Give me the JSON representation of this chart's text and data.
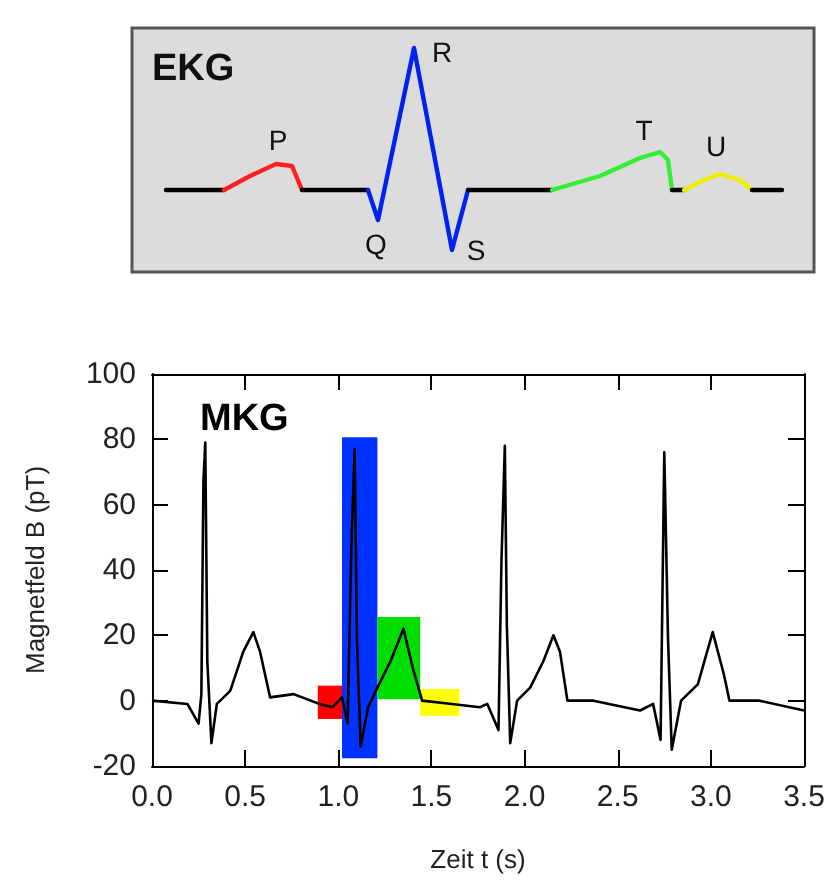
{
  "chart_data": [
    {
      "type": "other",
      "title": "EKG",
      "annotations": [
        "P",
        "Q",
        "R",
        "S",
        "T",
        "U"
      ]
    },
    {
      "type": "line",
      "xlabel": "Zeit t (s)",
      "ylabel": "Magnetfeld B (pT)",
      "xlim": [
        0,
        3.5
      ],
      "xticks": [
        {
          "value": 0,
          "label": "0.0"
        },
        {
          "value": 0.5,
          "label": "0.5"
        },
        {
          "value": 1,
          "label": "1.0"
        },
        {
          "value": 1.5,
          "label": "1.5"
        },
        {
          "value": 2,
          "label": "2.0"
        },
        {
          "value": 2.5,
          "label": "2.5"
        },
        {
          "value": 3,
          "label": "3.0"
        },
        {
          "value": 3.5,
          "label": "3.5"
        }
      ],
      "ylim": [
        -20,
        100
      ],
      "yticks": [
        -20,
        0,
        20,
        40,
        60,
        80,
        100
      ],
      "grid": false,
      "legend": "top left",
      "marker": "none",
      "line_style": "solid",
      "series": [
        {
          "name": "MKG",
          "color": "#000000",
          "x": [
            0,
            0.19,
            0.25,
            0.265,
            0.276,
            0.286,
            0.297,
            0.319,
            0.348,
            0.42,
            0.49,
            0.544,
            0.58,
            0.634,
            0.76,
            0.9,
            0.97,
            1.02,
            1.05,
            1.07,
            1.088,
            1.1,
            1.12,
            1.16,
            1.21,
            1.28,
            1.35,
            1.4,
            1.45,
            1.61,
            1.76,
            1.8,
            1.86,
            1.876,
            1.894,
            1.905,
            1.923,
            1.96,
            2.03,
            2.1,
            2.155,
            2.19,
            2.23,
            2.37,
            2.62,
            2.69,
            2.73,
            2.75,
            2.77,
            2.79,
            2.84,
            2.93,
            3.01,
            3.07,
            3.1,
            3.26,
            3.5
          ],
          "values": [
            0,
            -1,
            -7,
            2,
            67,
            79,
            12,
            -13,
            -1,
            3,
            15,
            21,
            15,
            1,
            2,
            -1,
            -2,
            1,
            -7,
            47,
            77,
            19,
            -14,
            -2,
            4,
            12,
            22,
            10,
            0,
            -1,
            -2,
            -1,
            -9,
            43,
            78,
            23,
            -13,
            0,
            4,
            12,
            20,
            15,
            0,
            0,
            -3,
            -1,
            -12,
            76,
            19,
            -15,
            0,
            5,
            21,
            8,
            0,
            0,
            -3
          ]
        }
      ],
      "bands": [
        {
          "axis": "x",
          "from": 0.89,
          "to": 1.02,
          "color": "#ff0000"
        },
        {
          "axis": "x",
          "from": 1.02,
          "to": 1.21,
          "color": "#0033ff"
        },
        {
          "axis": "x",
          "from": 1.21,
          "to": 1.44,
          "color": "#00dd00"
        },
        {
          "axis": "x",
          "from": 1.44,
          "to": 1.65,
          "color": "#ffff00"
        }
      ]
    }
  ]
}
